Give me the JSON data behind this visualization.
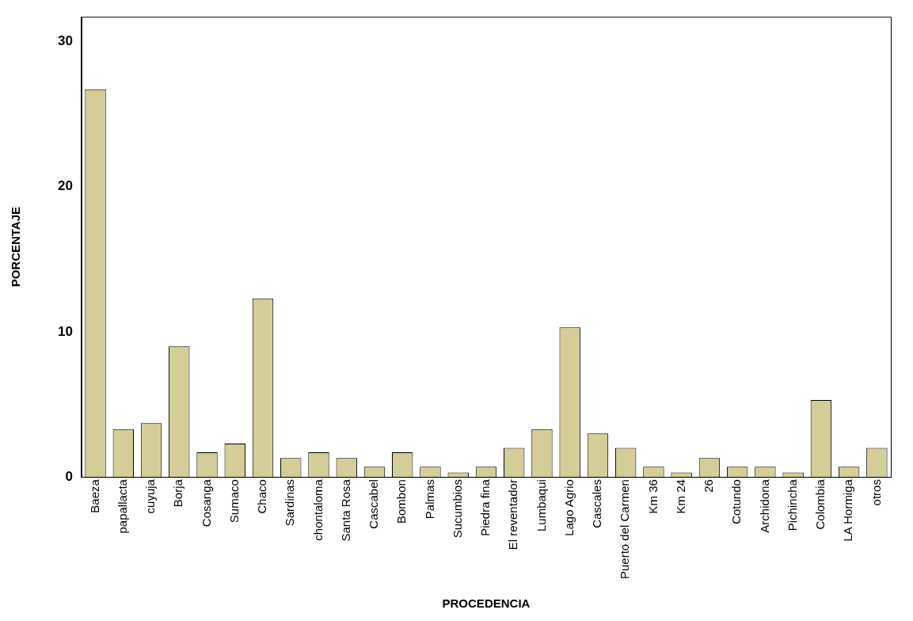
{
  "chart_data": {
    "type": "bar",
    "xlabel": "PROCEDENCIA",
    "ylabel": "PORCENTAJE",
    "categories": [
      "Baeza",
      "papallacta",
      "cuyuja",
      "Borja",
      "Cosanga",
      "Sumaco",
      "Chaco",
      "Sardinas",
      "chontaloma",
      "Santa Rosa",
      "Cascabel",
      "Bombon",
      "Palmas",
      "Sucumbios",
      "Piedra fina",
      "El reventador",
      "Lumbaqui",
      "Lago Agrio",
      "Cascales",
      "Puerto del Carmen",
      "Km 36",
      "Km 24",
      "26",
      "Cotundo",
      "Archidona",
      "Pichincha",
      "Colombia",
      "LA Hormiga",
      "otros"
    ],
    "values": [
      26.7,
      3.3,
      3.7,
      9.0,
      1.7,
      2.3,
      12.3,
      1.3,
      1.7,
      1.3,
      0.7,
      1.7,
      0.7,
      0.3,
      0.7,
      2.0,
      3.3,
      10.3,
      3.0,
      2.0,
      0.7,
      0.3,
      1.3,
      0.7,
      0.7,
      0.3,
      5.3,
      0.7,
      2.0
    ],
    "color": "#d4cd98",
    "ylim": [
      0,
      31.7
    ],
    "yticks": [
      0,
      10,
      20,
      30
    ],
    "grid": false,
    "legend": false
  }
}
